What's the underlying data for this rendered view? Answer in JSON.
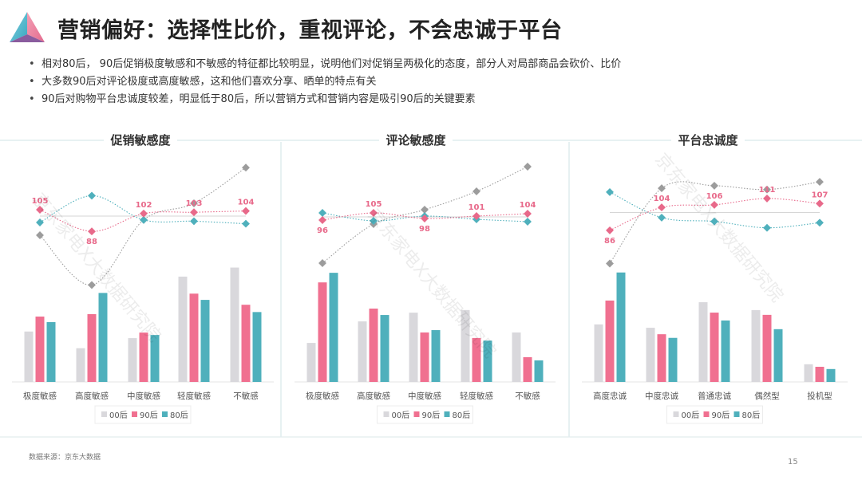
{
  "header": {
    "title": "营销偏好：选择性比价，重视评论，不会忠诚于平台",
    "bullets": [
      "相对80后， 90后促销极度敏感和不敏感的特征都比较明显，说明他们对促销呈两极化的态度，部分人对局部商品会砍价、比价",
      "大多数90后对评论极度或高度敏感，这和他们喜欢分享、晒单的特点有关",
      "90后对购物平台忠诚度较差，明显低于80后，所以营销方式和营销内容是吸引90后的关键要素"
    ]
  },
  "footer": {
    "source": "数据来源：京东大数据",
    "page": "15"
  },
  "watermark": "京东家电X大数据研究院",
  "colors": {
    "00后": "#d9d8dc",
    "90后": "#f07090",
    "80后": "#4fb0bc",
    "index_00后": "#9c9c9c",
    "index_90后": "#e8698a",
    "index_80后": "#4fb0bc",
    "reference": "#c8c8c8",
    "divider": "#cfe3e6"
  },
  "chart_data": [
    {
      "type": "bar+line",
      "title": "促销敏感度",
      "categories": [
        "极度敏感",
        "高度敏感",
        "中度敏感",
        "轻度敏感",
        "不敏感"
      ],
      "legend": [
        "00后",
        "90后",
        "80后"
      ],
      "legend_position": "bottom",
      "bar_unit": "%",
      "series": [
        {
          "name": "00后",
          "values": [
            14.5,
            9.7,
            12.6,
            30.3,
            32.9
          ]
        },
        {
          "name": "90后",
          "values": [
            18.8,
            19.5,
            14.2,
            25.4,
            22.2
          ]
        },
        {
          "name": "80后",
          "values": [
            17.2,
            25.6,
            13.5,
            23.6,
            20.1
          ]
        }
      ],
      "index_series": [
        {
          "name": "00后",
          "values": [
            85,
            46,
            97,
            110,
            138
          ]
        },
        {
          "name": "90后",
          "values": [
            105,
            88,
            102,
            103,
            104
          ],
          "labels": [
            "105",
            "88",
            "102",
            "103",
            "104"
          ]
        },
        {
          "name": "80后",
          "values": [
            95,
            116,
            97,
            96,
            94
          ]
        }
      ],
      "index_reference": 100,
      "grid": false
    },
    {
      "type": "bar+line",
      "title": "评论敏感度",
      "categories": [
        "极度敏感",
        "高度敏感",
        "中度敏感",
        "轻度敏感",
        "不敏感"
      ],
      "legend": [
        "00后",
        "90后",
        "80后"
      ],
      "legend_position": "bottom",
      "bar_unit": "%",
      "series": [
        {
          "name": "00后",
          "values": [
            13.4,
            20.8,
            23.8,
            24.7,
            17.0
          ]
        },
        {
          "name": "90后",
          "values": [
            34.2,
            25.2,
            17.0,
            15.1,
            8.5
          ]
        },
        {
          "name": "80后",
          "values": [
            37.5,
            23.0,
            17.8,
            14.2,
            7.4
          ]
        }
      ],
      "index_series": [
        {
          "name": "00后",
          "values": [
            42,
            91,
            109,
            132,
            163
          ]
        },
        {
          "name": "90后",
          "values": [
            96,
            105,
            98,
            101,
            104
          ],
          "labels": [
            "96",
            "105",
            "98",
            "101",
            "104"
          ]
        },
        {
          "name": "80后",
          "values": [
            105,
            95,
            101,
            97,
            94
          ]
        }
      ],
      "index_reference": 100,
      "grid": false
    },
    {
      "type": "bar+line",
      "title": "平台忠诚度",
      "categories": [
        "高度忠诚",
        "中度忠诚",
        "普通忠诚",
        "偶然型",
        "投机型"
      ],
      "legend": [
        "00后",
        "90后",
        "80后"
      ],
      "legend_position": "bottom",
      "bar_unit": "%",
      "series": [
        {
          "name": "00后",
          "values": [
            20.5,
            19.3,
            28.4,
            25.6,
            6.3
          ]
        },
        {
          "name": "90后",
          "values": [
            29.0,
            17.0,
            24.7,
            23.9,
            5.4
          ]
        },
        {
          "name": "80后",
          "values": [
            39.0,
            15.7,
            21.9,
            18.8,
            4.6
          ]
        }
      ],
      "index_series": [
        {
          "name": "00后",
          "values": [
            60,
            119,
            121,
            118,
            124
          ]
        },
        {
          "name": "90后",
          "values": [
            86,
            104,
            106,
            111,
            107
          ],
          "labels": [
            "86",
            "104",
            "106",
            "111",
            "107"
          ]
        },
        {
          "name": "80后",
          "values": [
            116,
            96,
            93,
            88,
            92
          ]
        }
      ],
      "index_reference": 100,
      "grid": false
    }
  ]
}
